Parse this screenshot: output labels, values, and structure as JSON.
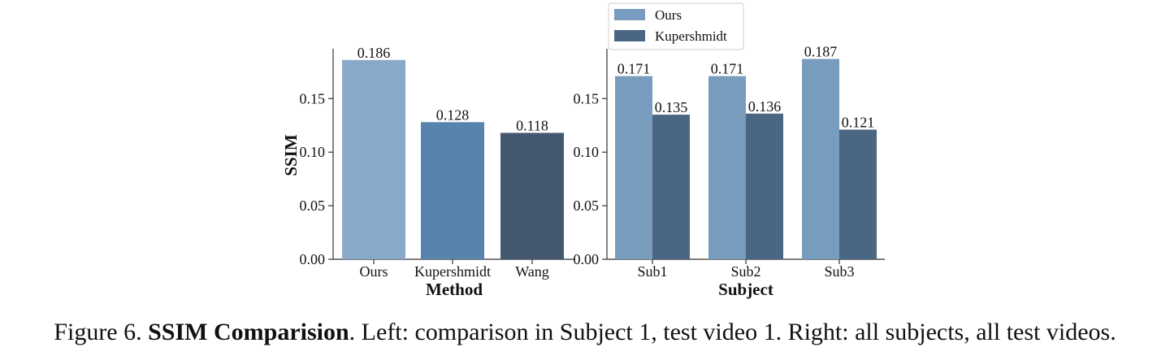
{
  "chart_data": [
    {
      "type": "bar",
      "title": "",
      "xlabel": "Method",
      "ylabel": "SSIM",
      "ylim": [
        0,
        0.195
      ],
      "yticks": [
        "0.00",
        "0.05",
        "0.10",
        "0.15"
      ],
      "grid": false,
      "categories": [
        "Ours",
        "Kupershmidt",
        "Wang"
      ],
      "values": [
        0.186,
        0.128,
        0.118
      ],
      "value_labels": [
        "0.186",
        "0.128",
        "0.118"
      ],
      "colors": [
        "#88a9c7",
        "#5883ad",
        "#44586d"
      ]
    },
    {
      "type": "bar",
      "title": "",
      "xlabel": "Subject",
      "ylabel": "",
      "ylim": [
        0,
        0.195
      ],
      "yticks": [
        "0.00",
        "0.05",
        "0.10",
        "0.15"
      ],
      "grid": false,
      "legend_position": "top",
      "categories": [
        "Sub1",
        "Sub2",
        "Sub3"
      ],
      "series": [
        {
          "name": "Ours",
          "values": [
            0.171,
            0.171,
            0.187
          ],
          "value_labels": [
            "0.171",
            "0.171",
            "0.187"
          ],
          "color": "#779cbe"
        },
        {
          "name": "Kupershmidt",
          "values": [
            0.135,
            0.136,
            0.121
          ],
          "value_labels": [
            "0.135",
            "0.136",
            "0.121"
          ],
          "color": "#4a6683"
        }
      ]
    }
  ],
  "caption": {
    "prefix": "Figure 6. ",
    "bold": "SSIM Comparision",
    "rest": ". Left: comparison in Subject 1, test video 1. Right: all subjects, all test videos."
  }
}
